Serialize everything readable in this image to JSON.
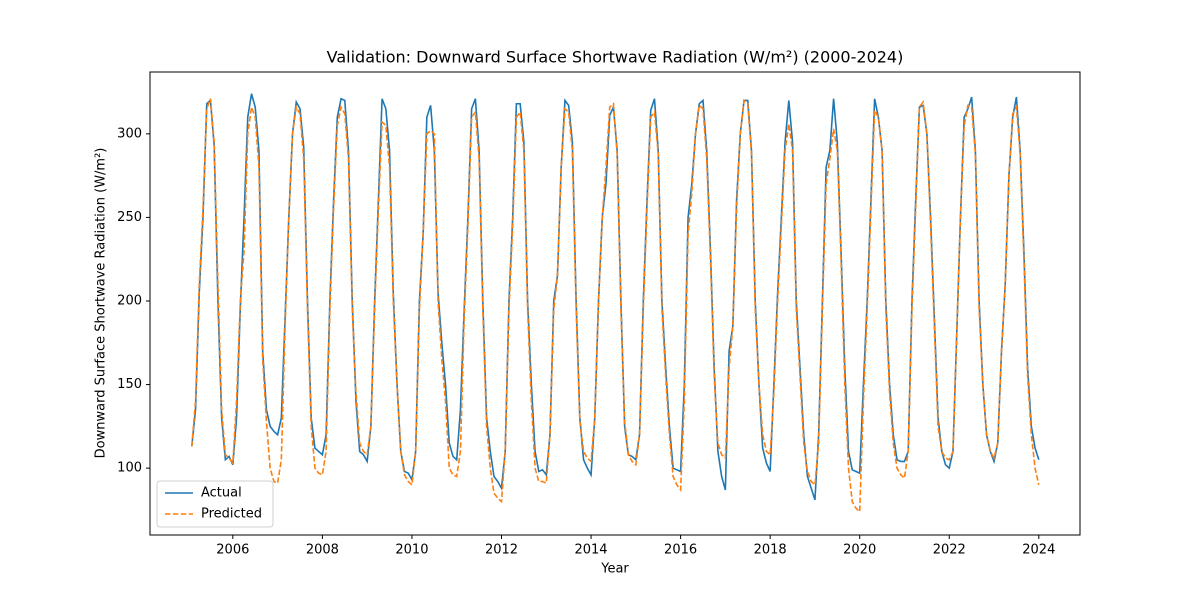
{
  "chart_data": {
    "type": "line",
    "title": "Validation: Downward Surface Shortwave Radiation (W/m²) (2000-2024)",
    "xlabel": "Year",
    "ylabel": "Downward Surface Shortwave Radiation (W/m²)",
    "legend": "lower left",
    "xlim": [
      2004.15,
      2024.92
    ],
    "xticks": [
      2006,
      2008,
      2010,
      2012,
      2014,
      2016,
      2018,
      2020,
      2022,
      2024
    ],
    "ylim": [
      60,
      337
    ],
    "yticks": [
      100,
      150,
      200,
      250,
      300
    ],
    "x": [
      2005.083,
      2005.167,
      2005.25,
      2005.333,
      2005.417,
      2005.5,
      2005.583,
      2005.667,
      2005.75,
      2005.833,
      2005.917,
      2006,
      2006.083,
      2006.167,
      2006.25,
      2006.333,
      2006.417,
      2006.5,
      2006.583,
      2006.667,
      2006.75,
      2006.833,
      2006.917,
      2007,
      2007.083,
      2007.167,
      2007.25,
      2007.333,
      2007.417,
      2007.5,
      2007.583,
      2007.667,
      2007.75,
      2007.833,
      2007.917,
      2008,
      2008.083,
      2008.167,
      2008.25,
      2008.333,
      2008.417,
      2008.5,
      2008.583,
      2008.667,
      2008.75,
      2008.833,
      2008.917,
      2009,
      2009.083,
      2009.167,
      2009.25,
      2009.333,
      2009.417,
      2009.5,
      2009.583,
      2009.667,
      2009.75,
      2009.833,
      2009.917,
      2010,
      2010.083,
      2010.167,
      2010.25,
      2010.333,
      2010.417,
      2010.5,
      2010.583,
      2010.667,
      2010.75,
      2010.833,
      2010.917,
      2011,
      2011.083,
      2011.167,
      2011.25,
      2011.333,
      2011.417,
      2011.5,
      2011.583,
      2011.667,
      2011.75,
      2011.833,
      2011.917,
      2012,
      2012.083,
      2012.167,
      2012.25,
      2012.333,
      2012.417,
      2012.5,
      2012.583,
      2012.667,
      2012.75,
      2012.833,
      2012.917,
      2013,
      2013.083,
      2013.167,
      2013.25,
      2013.333,
      2013.417,
      2013.5,
      2013.583,
      2013.667,
      2013.75,
      2013.833,
      2013.917,
      2014,
      2014.083,
      2014.167,
      2014.25,
      2014.333,
      2014.417,
      2014.5,
      2014.583,
      2014.667,
      2014.75,
      2014.833,
      2014.917,
      2015,
      2015.083,
      2015.167,
      2015.25,
      2015.333,
      2015.417,
      2015.5,
      2015.583,
      2015.667,
      2015.75,
      2015.833,
      2015.917,
      2016,
      2016.083,
      2016.167,
      2016.25,
      2016.333,
      2016.417,
      2016.5,
      2016.583,
      2016.667,
      2016.75,
      2016.833,
      2016.917,
      2017,
      2017.083,
      2017.167,
      2017.25,
      2017.333,
      2017.417,
      2017.5,
      2017.583,
      2017.667,
      2017.75,
      2017.833,
      2017.917,
      2018,
      2018.083,
      2018.167,
      2018.25,
      2018.333,
      2018.417,
      2018.5,
      2018.583,
      2018.667,
      2018.75,
      2018.833,
      2018.917,
      2019,
      2019.083,
      2019.167,
      2019.25,
      2019.333,
      2019.417,
      2019.5,
      2019.583,
      2019.667,
      2019.75,
      2019.833,
      2019.917,
      2020,
      2020.083,
      2020.167,
      2020.25,
      2020.333,
      2020.417,
      2020.5,
      2020.583,
      2020.667,
      2020.75,
      2020.833,
      2020.917,
      2021,
      2021.083,
      2021.167,
      2021.25,
      2021.333,
      2021.417,
      2021.5,
      2021.583,
      2021.667,
      2021.75,
      2021.833,
      2021.917,
      2022,
      2022.083,
      2022.167,
      2022.25,
      2022.333,
      2022.417,
      2022.5,
      2022.583,
      2022.667,
      2022.75,
      2022.833,
      2022.917,
      2023,
      2023.083,
      2023.167,
      2023.25,
      2023.333,
      2023.417,
      2023.5,
      2023.583,
      2023.667,
      2023.75,
      2023.833,
      2023.917,
      2024
    ],
    "series": [
      {
        "name": "Actual",
        "color": "#1f77b4",
        "dash": false,
        "values": [
          113,
          135,
          205,
          250,
          318,
          320,
          293,
          200,
          130,
          105,
          107,
          102,
          130,
          196,
          250,
          310,
          324,
          316,
          290,
          170,
          135,
          125,
          122,
          120,
          130,
          190,
          250,
          300,
          319,
          315,
          292,
          200,
          130,
          112,
          110,
          108,
          120,
          200,
          260,
          310,
          321,
          320,
          290,
          200,
          140,
          110,
          108,
          104,
          125,
          200,
          260,
          321,
          315,
          290,
          205,
          150,
          110,
          98,
          97,
          93,
          110,
          200,
          240,
          310,
          317,
          290,
          205,
          175,
          150,
          115,
          107,
          105,
          135,
          195,
          250,
          315,
          321,
          290,
          200,
          130,
          110,
          95,
          92,
          88,
          110,
          200,
          250,
          318,
          318,
          295,
          200,
          150,
          110,
          98,
          99,
          96,
          120,
          200,
          215,
          280,
          320,
          317,
          295,
          200,
          130,
          105,
          100,
          96,
          130,
          200,
          250,
          270,
          311,
          316,
          290,
          200,
          125,
          108,
          107,
          105,
          120,
          200,
          260,
          314,
          321,
          290,
          200,
          160,
          125,
          100,
          99,
          98,
          150,
          250,
          270,
          300,
          318,
          320,
          290,
          230,
          160,
          110,
          95,
          87,
          170,
          185,
          260,
          300,
          320,
          320,
          290,
          200,
          150,
          112,
          103,
          98,
          150,
          205,
          250,
          295,
          320,
          295,
          200,
          160,
          120,
          95,
          88,
          81,
          120,
          200,
          280,
          290,
          321,
          295,
          230,
          160,
          110,
          99,
          98,
          97,
          150,
          200,
          260,
          321,
          310,
          290,
          200,
          150,
          120,
          105,
          104,
          104,
          110,
          200,
          260,
          316,
          317,
          300,
          250,
          190,
          130,
          110,
          102,
          100,
          110,
          180,
          250,
          310,
          315,
          322,
          290,
          200,
          150,
          120,
          110,
          104,
          115,
          170,
          210,
          275,
          310,
          322,
          290,
          230,
          160,
          125,
          112,
          105
        ]
      },
      {
        "name": "Predicted",
        "color": "#ff7f0e",
        "dash": true,
        "values": [
          113,
          140,
          210,
          255,
          315,
          321,
          295,
          210,
          135,
          108,
          106,
          103,
          140,
          200,
          230,
          300,
          316,
          310,
          280,
          165,
          128,
          100,
          92,
          91,
          105,
          185,
          250,
          300,
          316,
          312,
          285,
          195,
          125,
          100,
          97,
          96,
          110,
          195,
          255,
          305,
          316,
          312,
          285,
          195,
          145,
          115,
          110,
          108,
          125,
          195,
          255,
          307,
          305,
          280,
          200,
          150,
          110,
          96,
          92,
          90,
          110,
          195,
          240,
          300,
          302,
          300,
          200,
          165,
          140,
          100,
          96,
          95,
          110,
          190,
          245,
          310,
          313,
          285,
          195,
          125,
          100,
          85,
          82,
          80,
          110,
          195,
          245,
          310,
          313,
          290,
          195,
          140,
          100,
          92,
          92,
          91,
          120,
          195,
          215,
          280,
          315,
          313,
          290,
          195,
          128,
          110,
          106,
          104,
          130,
          200,
          250,
          280,
          316,
          318,
          288,
          195,
          128,
          108,
          104,
          102,
          120,
          195,
          255,
          310,
          313,
          288,
          195,
          155,
          120,
          95,
          90,
          87,
          140,
          240,
          265,
          300,
          317,
          315,
          285,
          225,
          155,
          115,
          108,
          106,
          160,
          185,
          255,
          300,
          320,
          318,
          288,
          195,
          150,
          120,
          110,
          108,
          145,
          200,
          245,
          290,
          306,
          290,
          195,
          155,
          115,
          98,
          92,
          90,
          115,
          195,
          270,
          285,
          303,
          290,
          225,
          150,
          100,
          80,
          76,
          74,
          140,
          195,
          255,
          314,
          310,
          290,
          195,
          145,
          115,
          100,
          96,
          94,
          110,
          195,
          255,
          316,
          319,
          300,
          245,
          185,
          125,
          110,
          106,
          105,
          110,
          180,
          250,
          305,
          317,
          316,
          288,
          195,
          150,
          120,
          110,
          106,
          115,
          170,
          210,
          275,
          312,
          316,
          288,
          225,
          155,
          120,
          100,
          90
        ]
      }
    ]
  }
}
